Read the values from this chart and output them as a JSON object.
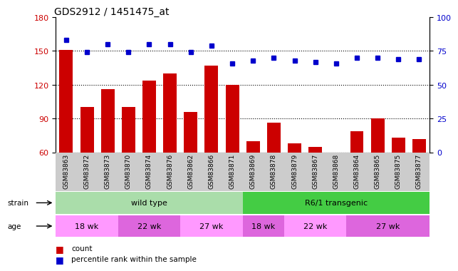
{
  "title": "GDS2912 / 1451475_at",
  "samples": [
    "GSM83863",
    "GSM83872",
    "GSM83873",
    "GSM83870",
    "GSM83874",
    "GSM83876",
    "GSM83862",
    "GSM83866",
    "GSM83871",
    "GSM83869",
    "GSM83878",
    "GSM83879",
    "GSM83867",
    "GSM83868",
    "GSM83864",
    "GSM83865",
    "GSM83875",
    "GSM83877"
  ],
  "counts": [
    151,
    100,
    116,
    100,
    124,
    130,
    96,
    137,
    120,
    70,
    86,
    68,
    65,
    60,
    79,
    90,
    73,
    72
  ],
  "percentiles": [
    83,
    74,
    80,
    74,
    80,
    80,
    74,
    79,
    66,
    68,
    70,
    68,
    67,
    66,
    70,
    70,
    69,
    69
  ],
  "ylim_left": [
    60,
    180
  ],
  "ylim_right": [
    0,
    100
  ],
  "yticks_left": [
    60,
    90,
    120,
    150,
    180
  ],
  "yticks_right": [
    0,
    25,
    50,
    75,
    100
  ],
  "bar_color": "#cc0000",
  "dot_color": "#0000cc",
  "wt_color": "#aaddaa",
  "r6_color": "#44cc44",
  "age_color_light": "#ff99ff",
  "age_color_dark": "#dd66dd",
  "xtick_bg": "#cccccc",
  "n_wt": 9,
  "age_groups_wt": [
    {
      "label": "18 wk",
      "start": 0,
      "end": 3
    },
    {
      "label": "22 wk",
      "start": 3,
      "end": 6
    },
    {
      "label": "27 wk",
      "start": 6,
      "end": 9
    }
  ],
  "age_groups_r6": [
    {
      "label": "18 wk",
      "start": 9,
      "end": 11
    },
    {
      "label": "22 wk",
      "start": 11,
      "end": 14
    },
    {
      "label": "27 wk",
      "start": 14,
      "end": 18
    }
  ]
}
